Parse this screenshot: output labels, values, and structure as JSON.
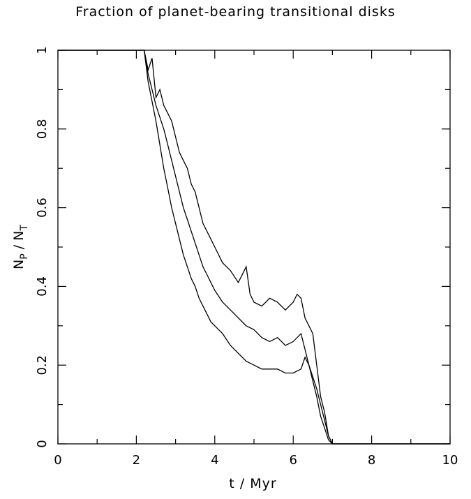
{
  "chart_data": {
    "type": "line",
    "title": "Fraction of planet-bearing transitional disks",
    "xlabel": "t / Myr",
    "ylabel": {
      "n": "N",
      "sub_p": "P",
      "sep": " / ",
      "sub_t": "T"
    },
    "xlim": [
      0,
      10
    ],
    "ylim": [
      0,
      1
    ],
    "x_ticks": [
      "0",
      "2",
      "4",
      "6",
      "8",
      "10"
    ],
    "y_ticks": [
      "0",
      "0.2",
      "0.4",
      "0.6",
      "0.8",
      "1"
    ],
    "grid": false,
    "series": [
      {
        "x": [
          0.0,
          2.2,
          2.3,
          2.4,
          2.5,
          2.6,
          2.7,
          2.8,
          2.9,
          3.0,
          3.1,
          3.2,
          3.3,
          3.4,
          3.5,
          3.6,
          3.7,
          3.8,
          3.9,
          4.0,
          4.2,
          4.4,
          4.6,
          4.8,
          4.9,
          5.0,
          5.2,
          5.4,
          5.6,
          5.8,
          6.0,
          6.1,
          6.2,
          6.3,
          6.4,
          6.5,
          6.6,
          6.7,
          6.8,
          6.85,
          6.9,
          7.0,
          10.0
        ],
        "y": [
          1.0,
          1.0,
          0.95,
          0.98,
          0.88,
          0.9,
          0.86,
          0.84,
          0.82,
          0.78,
          0.74,
          0.72,
          0.7,
          0.66,
          0.64,
          0.6,
          0.56,
          0.54,
          0.52,
          0.5,
          0.46,
          0.44,
          0.41,
          0.45,
          0.38,
          0.36,
          0.35,
          0.37,
          0.36,
          0.34,
          0.36,
          0.38,
          0.37,
          0.32,
          0.3,
          0.28,
          0.2,
          0.12,
          0.08,
          0.05,
          0.02,
          0.0,
          0.0
        ]
      },
      {
        "x": [
          0.0,
          2.2,
          2.3,
          2.4,
          2.5,
          2.6,
          2.7,
          2.8,
          2.9,
          3.0,
          3.1,
          3.2,
          3.3,
          3.4,
          3.5,
          3.6,
          3.7,
          3.8,
          3.9,
          4.0,
          4.2,
          4.4,
          4.6,
          4.8,
          5.0,
          5.2,
          5.4,
          5.6,
          5.8,
          6.0,
          6.2,
          6.3,
          6.4,
          6.5,
          6.6,
          6.7,
          6.8,
          6.9,
          7.0,
          10.0
        ],
        "y": [
          1.0,
          1.0,
          0.94,
          0.9,
          0.86,
          0.83,
          0.8,
          0.76,
          0.72,
          0.68,
          0.64,
          0.6,
          0.57,
          0.54,
          0.51,
          0.48,
          0.45,
          0.43,
          0.41,
          0.39,
          0.36,
          0.34,
          0.32,
          0.3,
          0.29,
          0.27,
          0.26,
          0.27,
          0.25,
          0.26,
          0.28,
          0.24,
          0.2,
          0.16,
          0.12,
          0.07,
          0.04,
          0.01,
          0.0,
          0.0
        ]
      },
      {
        "x": [
          0.0,
          2.2,
          2.3,
          2.4,
          2.5,
          2.6,
          2.7,
          2.8,
          2.9,
          3.0,
          3.1,
          3.2,
          3.3,
          3.4,
          3.5,
          3.6,
          3.7,
          3.8,
          3.9,
          4.0,
          4.2,
          4.4,
          4.6,
          4.8,
          5.0,
          5.2,
          5.4,
          5.6,
          5.8,
          6.0,
          6.2,
          6.3,
          6.4,
          6.5,
          6.6,
          6.7,
          6.8,
          6.9,
          7.0,
          10.0
        ],
        "y": [
          1.0,
          1.0,
          0.92,
          0.87,
          0.82,
          0.76,
          0.7,
          0.65,
          0.6,
          0.56,
          0.52,
          0.48,
          0.45,
          0.42,
          0.4,
          0.37,
          0.35,
          0.33,
          0.31,
          0.3,
          0.28,
          0.25,
          0.23,
          0.21,
          0.2,
          0.19,
          0.19,
          0.19,
          0.18,
          0.18,
          0.19,
          0.22,
          0.2,
          0.17,
          0.14,
          0.1,
          0.06,
          0.02,
          0.0,
          0.0
        ]
      }
    ]
  }
}
